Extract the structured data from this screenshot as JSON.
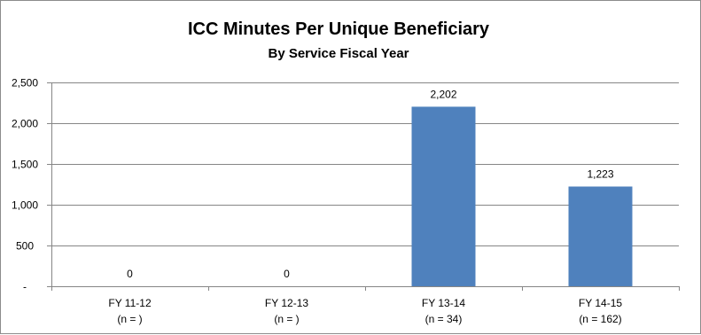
{
  "chart_data": {
    "type": "bar",
    "title": "ICC Minutes Per Unique Beneficiary",
    "subtitle": "By Service Fiscal Year",
    "categories": [
      "FY 11-12",
      "FY 12-13",
      "FY 13-14",
      "FY 14-15"
    ],
    "category_sublabels": [
      "(n = )",
      "(n = )",
      "(n = 34)",
      "(n = 162)"
    ],
    "values": [
      0,
      0,
      2202,
      1223
    ],
    "data_labels": [
      "0",
      "0",
      "2,202",
      "1,223"
    ],
    "ylim": [
      0,
      2500
    ],
    "yticks": [
      0,
      500,
      1000,
      1500,
      2000,
      2500
    ],
    "ytick_labels": [
      "-",
      "500",
      "1,000",
      "1,500",
      "2,000",
      "2,500"
    ],
    "grid": true,
    "legend": "none",
    "bar_color": "#4f81bd",
    "grid_color": "#868686"
  }
}
